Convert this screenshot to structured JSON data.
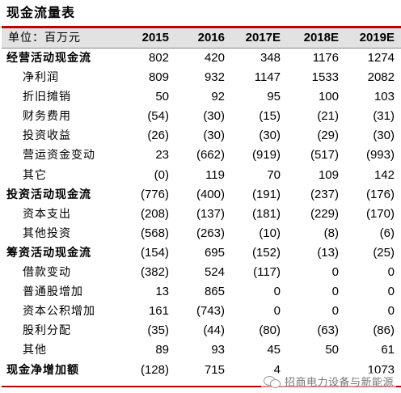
{
  "title": "现金流量表",
  "header": {
    "unit_label": "单位：百万元",
    "columns": [
      "2015",
      "2016",
      "2017E",
      "2018E",
      "2019E"
    ]
  },
  "rows": [
    {
      "label": "经营活动现金流",
      "level": "main",
      "values": [
        "802",
        "420",
        "348",
        "1176",
        "1274"
      ]
    },
    {
      "label": "净利润",
      "level": "sub",
      "values": [
        "809",
        "932",
        "1147",
        "1533",
        "2082"
      ]
    },
    {
      "label": "折旧摊销",
      "level": "sub",
      "values": [
        "50",
        "92",
        "95",
        "100",
        "103"
      ]
    },
    {
      "label": "财务费用",
      "level": "sub",
      "values": [
        "(54)",
        "(30)",
        "(15)",
        "(21)",
        "(31)"
      ]
    },
    {
      "label": "投资收益",
      "level": "sub",
      "values": [
        "(26)",
        "(30)",
        "(30)",
        "(29)",
        "(30)"
      ]
    },
    {
      "label": "营运资金变动",
      "level": "sub",
      "values": [
        "23",
        "(662)",
        "(919)",
        "(517)",
        "(993)"
      ]
    },
    {
      "label": "其它",
      "level": "sub",
      "values": [
        "(0)",
        "119",
        "70",
        "109",
        "142"
      ]
    },
    {
      "label": "投资活动现金流",
      "level": "main",
      "values": [
        "(776)",
        "(400)",
        "(191)",
        "(237)",
        "(176)"
      ]
    },
    {
      "label": "资本支出",
      "level": "sub",
      "values": [
        "(208)",
        "(137)",
        "(181)",
        "(229)",
        "(170)"
      ]
    },
    {
      "label": "其他投资",
      "level": "sub",
      "values": [
        "(568)",
        "(263)",
        "(10)",
        "(8)",
        "(6)"
      ]
    },
    {
      "label": "筹资活动现金流",
      "level": "main",
      "values": [
        "(154)",
        "695",
        "(152)",
        "(13)",
        "(25)"
      ]
    },
    {
      "label": "借款变动",
      "level": "sub",
      "values": [
        "(382)",
        "524",
        "(117)",
        "0",
        "0"
      ]
    },
    {
      "label": "普通股增加",
      "level": "sub",
      "values": [
        "13",
        "865",
        "0",
        "0",
        "0"
      ]
    },
    {
      "label": "资本公积增加",
      "level": "sub",
      "values": [
        "161",
        "(743)",
        "0",
        "0",
        "0"
      ]
    },
    {
      "label": "股利分配",
      "level": "sub",
      "values": [
        "(35)",
        "(44)",
        "(80)",
        "(63)",
        "(86)"
      ]
    },
    {
      "label": "其他",
      "level": "sub",
      "values": [
        "89",
        "93",
        "45",
        "50",
        "61"
      ]
    },
    {
      "label": "现金净增加额",
      "level": "main",
      "values": [
        "(128)",
        "715",
        "4",
        "",
        "1073"
      ]
    }
  ],
  "watermark": {
    "icon": "wechat-icon",
    "text": "招商电力设备与新能源"
  }
}
